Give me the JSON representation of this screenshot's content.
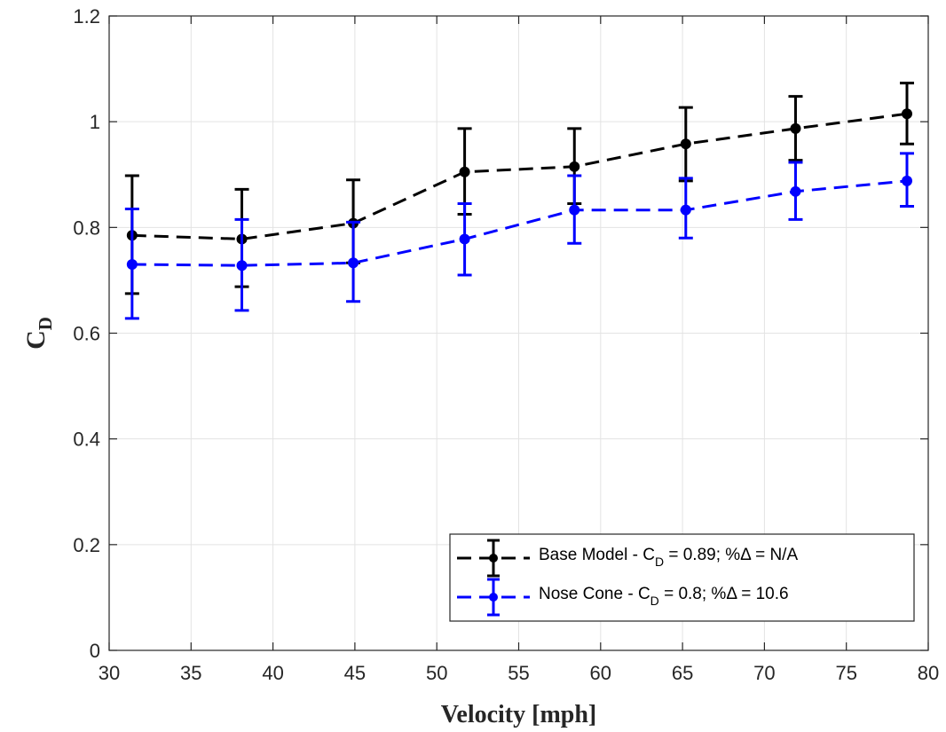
{
  "chart_data": {
    "type": "line",
    "xlabel": "Velocity [mph]",
    "ylabel": "C",
    "ylabel_subscript": "D",
    "xlim": [
      30,
      80
    ],
    "ylim": [
      0,
      1.2
    ],
    "xticks": [
      "30",
      "35",
      "40",
      "45",
      "50",
      "55",
      "60",
      "65",
      "70",
      "75",
      "80"
    ],
    "yticks": [
      "0",
      "0.2",
      "0.4",
      "0.6",
      "0.8",
      "1",
      "1.2"
    ],
    "grid": true,
    "legend_position": "bottom-right",
    "x": [
      31.4,
      38.1,
      44.9,
      51.7,
      58.4,
      65.2,
      71.9,
      78.7
    ],
    "series": [
      {
        "name": "Base Model - C_D = 0.89; %Δ = N/A",
        "legend_parts": [
          "Base Model - C",
          "D",
          " = 0.89; %Δ = N/A"
        ],
        "color": "#000000",
        "values": [
          0.785,
          0.778,
          0.808,
          0.905,
          0.915,
          0.958,
          0.987,
          1.015
        ],
        "err_low": [
          0.675,
          0.688,
          0.733,
          0.825,
          0.845,
          0.888,
          0.927,
          0.958
        ],
        "err_high": [
          0.898,
          0.872,
          0.89,
          0.987,
          0.987,
          1.027,
          1.048,
          1.073
        ]
      },
      {
        "name": "Nose Cone - C_D = 0.8; %Δ = 10.6",
        "legend_parts": [
          "Nose Cone - C",
          "D",
          " = 0.8; %Δ = 10.6"
        ],
        "color": "#0000ff",
        "values": [
          0.73,
          0.728,
          0.733,
          0.778,
          0.833,
          0.833,
          0.868,
          0.888
        ],
        "err_low": [
          0.628,
          0.643,
          0.66,
          0.71,
          0.77,
          0.78,
          0.815,
          0.84
        ],
        "err_high": [
          0.835,
          0.815,
          0.81,
          0.845,
          0.898,
          0.893,
          0.923,
          0.94
        ]
      }
    ]
  }
}
